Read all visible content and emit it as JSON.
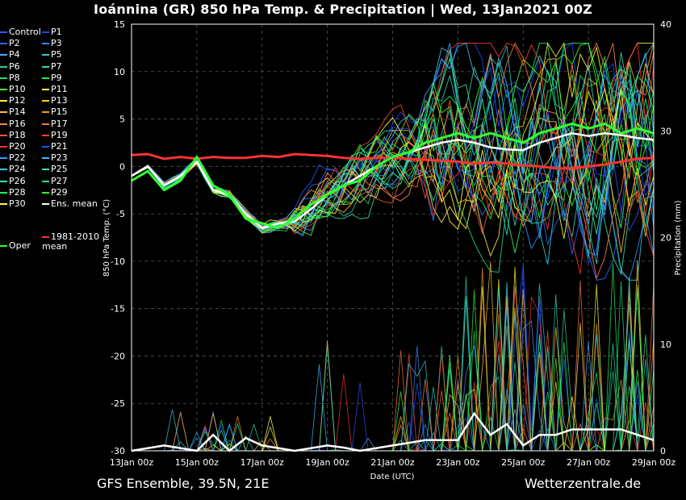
{
  "title": "Ioánnina  (GR)  850 hPa Temp. & Precipitation | Wed, 13Jan2021 00Z",
  "footer": {
    "left": "GFS Ensemble, 39.5N, 21E",
    "right": "Wetterzentrale.de"
  },
  "colors": {
    "background": "#000000",
    "ens_mean": "#ffffff",
    "climate_mean": "#ff3333",
    "oper": "#33ff33",
    "control": "#3333ff"
  },
  "legend": {
    "members": [
      {
        "label": "Control",
        "color": "#3355ff"
      },
      {
        "label": "P1",
        "color": "#2244ff"
      },
      {
        "label": "P2",
        "color": "#3366ff"
      },
      {
        "label": "P3",
        "color": "#3388ff"
      },
      {
        "label": "P4",
        "color": "#44aaff"
      },
      {
        "label": "P5",
        "color": "#33ccbb"
      },
      {
        "label": "P6",
        "color": "#33ccaa"
      },
      {
        "label": "P7",
        "color": "#33dd99"
      },
      {
        "label": "P8",
        "color": "#22dd77"
      },
      {
        "label": "P9",
        "color": "#22ee55"
      },
      {
        "label": "P10",
        "color": "#44ff22"
      },
      {
        "label": "P11",
        "color": "#ffff33"
      },
      {
        "label": "P12",
        "color": "#ffee55"
      },
      {
        "label": "P13",
        "color": "#ffcc33"
      },
      {
        "label": "P14",
        "color": "#ffbb33"
      },
      {
        "label": "P15",
        "color": "#ff9922"
      },
      {
        "label": "P16",
        "color": "#ff8844"
      },
      {
        "label": "P17",
        "color": "#ff7744"
      },
      {
        "label": "P18",
        "color": "#ff5533"
      },
      {
        "label": "P19",
        "color": "#ff4422"
      },
      {
        "label": "P20",
        "color": "#ff3333"
      },
      {
        "label": "P21",
        "color": "#2255ff"
      },
      {
        "label": "P22",
        "color": "#3399ff"
      },
      {
        "label": "P23",
        "color": "#44bbff"
      },
      {
        "label": "P24",
        "color": "#33ccdd"
      },
      {
        "label": "P25",
        "color": "#33ddbb"
      },
      {
        "label": "P26",
        "color": "#33ee99"
      },
      {
        "label": "P27",
        "color": "#22ee77"
      },
      {
        "label": "P28",
        "color": "#22ff55"
      },
      {
        "label": "P29",
        "color": "#33ff33"
      },
      {
        "label": "P30",
        "color": "#ffff44"
      },
      {
        "label": "Ens. mean",
        "color": "#ffffff"
      }
    ],
    "oper": {
      "label": "Oper",
      "color": "#33ff33"
    },
    "climate": {
      "label": "1981-2010 mean",
      "color": "#ff3333"
    }
  },
  "chart_data": {
    "type": "line",
    "title": "Ioánnina  (GR)  850 hPa Temp. & Precipitation | Wed, 13Jan2021 00Z",
    "xlabel": "Date (UTC)",
    "ylabel": "850 hPa Temp. (°C)",
    "y2label": "Precipitation (mm)",
    "ylim": [
      -30,
      15
    ],
    "y2lim": [
      0,
      40
    ],
    "yticks": [
      15,
      10,
      5,
      0,
      -5,
      -10,
      -15,
      -20,
      -25,
      -30
    ],
    "y2ticks": [
      40,
      30,
      20,
      10,
      0
    ],
    "xlim_days": [
      0,
      16
    ],
    "xticks": [
      {
        "label": "13Jan 00z",
        "day": 0
      },
      {
        "label": "15Jan 00z",
        "day": 2
      },
      {
        "label": "17Jan 00z",
        "day": 4
      },
      {
        "label": "19Jan 00z",
        "day": 6
      },
      {
        "label": "21Jan 00z",
        "day": 8
      },
      {
        "label": "23Jan 00z",
        "day": 10
      },
      {
        "label": "25Jan 00z",
        "day": 12
      },
      {
        "label": "27Jan 00z",
        "day": 14
      },
      {
        "label": "29Jan 00z",
        "day": 16
      }
    ],
    "grid": true,
    "legend_position": "left",
    "series": [
      {
        "name": "Ens. mean",
        "color": "#ffffff",
        "width": 2.5,
        "x": [
          0,
          0.5,
          1,
          1.5,
          2,
          2.5,
          3,
          3.5,
          4,
          4.5,
          5,
          5.5,
          6,
          6.5,
          7,
          7.5,
          8,
          8.5,
          9,
          9.5,
          10,
          10.5,
          11,
          11.5,
          12,
          12.5,
          13,
          13.5,
          14,
          14.5,
          15,
          15.5,
          16
        ],
        "y": [
          -1,
          0,
          -2,
          -1,
          0.5,
          -2.5,
          -3,
          -5,
          -6.5,
          -6,
          -5.8,
          -4.5,
          -3,
          -2,
          -1,
          0,
          1,
          1.5,
          2,
          2.5,
          2.8,
          2.5,
          2,
          1.8,
          1.7,
          2.5,
          3,
          3.5,
          3.2,
          3.5,
          3.3,
          3.0,
          2.8
        ]
      },
      {
        "name": "1981-2010 mean",
        "color": "#ff3333",
        "width": 3,
        "x": [
          0,
          0.5,
          1,
          1.5,
          2,
          2.5,
          3,
          3.5,
          4,
          4.5,
          5,
          5.5,
          6,
          6.5,
          7,
          7.5,
          8,
          8.5,
          9,
          9.5,
          10,
          10.5,
          11,
          11.5,
          12,
          12.5,
          13,
          13.5,
          14,
          14.5,
          15,
          15.5,
          16
        ],
        "y": [
          1.2,
          1.3,
          0.8,
          1.0,
          0.8,
          1.0,
          0.9,
          0.9,
          1.1,
          1.0,
          1.3,
          1.2,
          1.1,
          0.9,
          0.8,
          0.9,
          0.9,
          0.8,
          0.7,
          0.6,
          0.5,
          0.3,
          0.4,
          0.3,
          0.1,
          0.0,
          -0.2,
          -0.2,
          0.0,
          0.2,
          0.5,
          0.8,
          0.9
        ]
      },
      {
        "name": "Oper",
        "color": "#33ff33",
        "width": 3,
        "x": [
          0,
          0.5,
          1,
          1.5,
          2,
          2.5,
          3,
          3.5,
          4,
          4.5,
          5,
          5.5,
          6,
          6.5,
          7,
          7.5,
          8,
          8.5,
          9,
          9.5,
          10,
          10.5,
          11,
          11.5,
          12,
          12.5,
          13,
          13.5,
          14,
          14.5,
          15,
          15.5,
          16
        ],
        "y": [
          -1.5,
          -0.5,
          -2.5,
          -1.5,
          1,
          -2,
          -3,
          -5.5,
          -6,
          -6.5,
          -5.5,
          -4,
          -3,
          -2,
          -1.5,
          0,
          1,
          1.5,
          2.5,
          3,
          3.5,
          3,
          3.5,
          3,
          2.5,
          3.5,
          4,
          4.5,
          4,
          4.5,
          3.5,
          4,
          3.5
        ]
      }
    ],
    "precip_series": [
      {
        "name": "Ens. mean",
        "color": "#ffffff",
        "x": [
          0,
          1,
          2,
          2.5,
          3,
          3.5,
          4,
          5,
          6,
          6.5,
          7,
          8,
          9,
          10,
          10.5,
          11,
          11.5,
          12,
          12.5,
          13,
          13.5,
          14,
          15,
          16
        ],
        "y": [
          0,
          0.5,
          0,
          1.5,
          0,
          1.2,
          0.5,
          0,
          0.5,
          0.3,
          0,
          0.5,
          1,
          1,
          3.5,
          1.5,
          2.5,
          0.5,
          1.5,
          1.5,
          2,
          2,
          2,
          1
        ]
      }
    ]
  }
}
